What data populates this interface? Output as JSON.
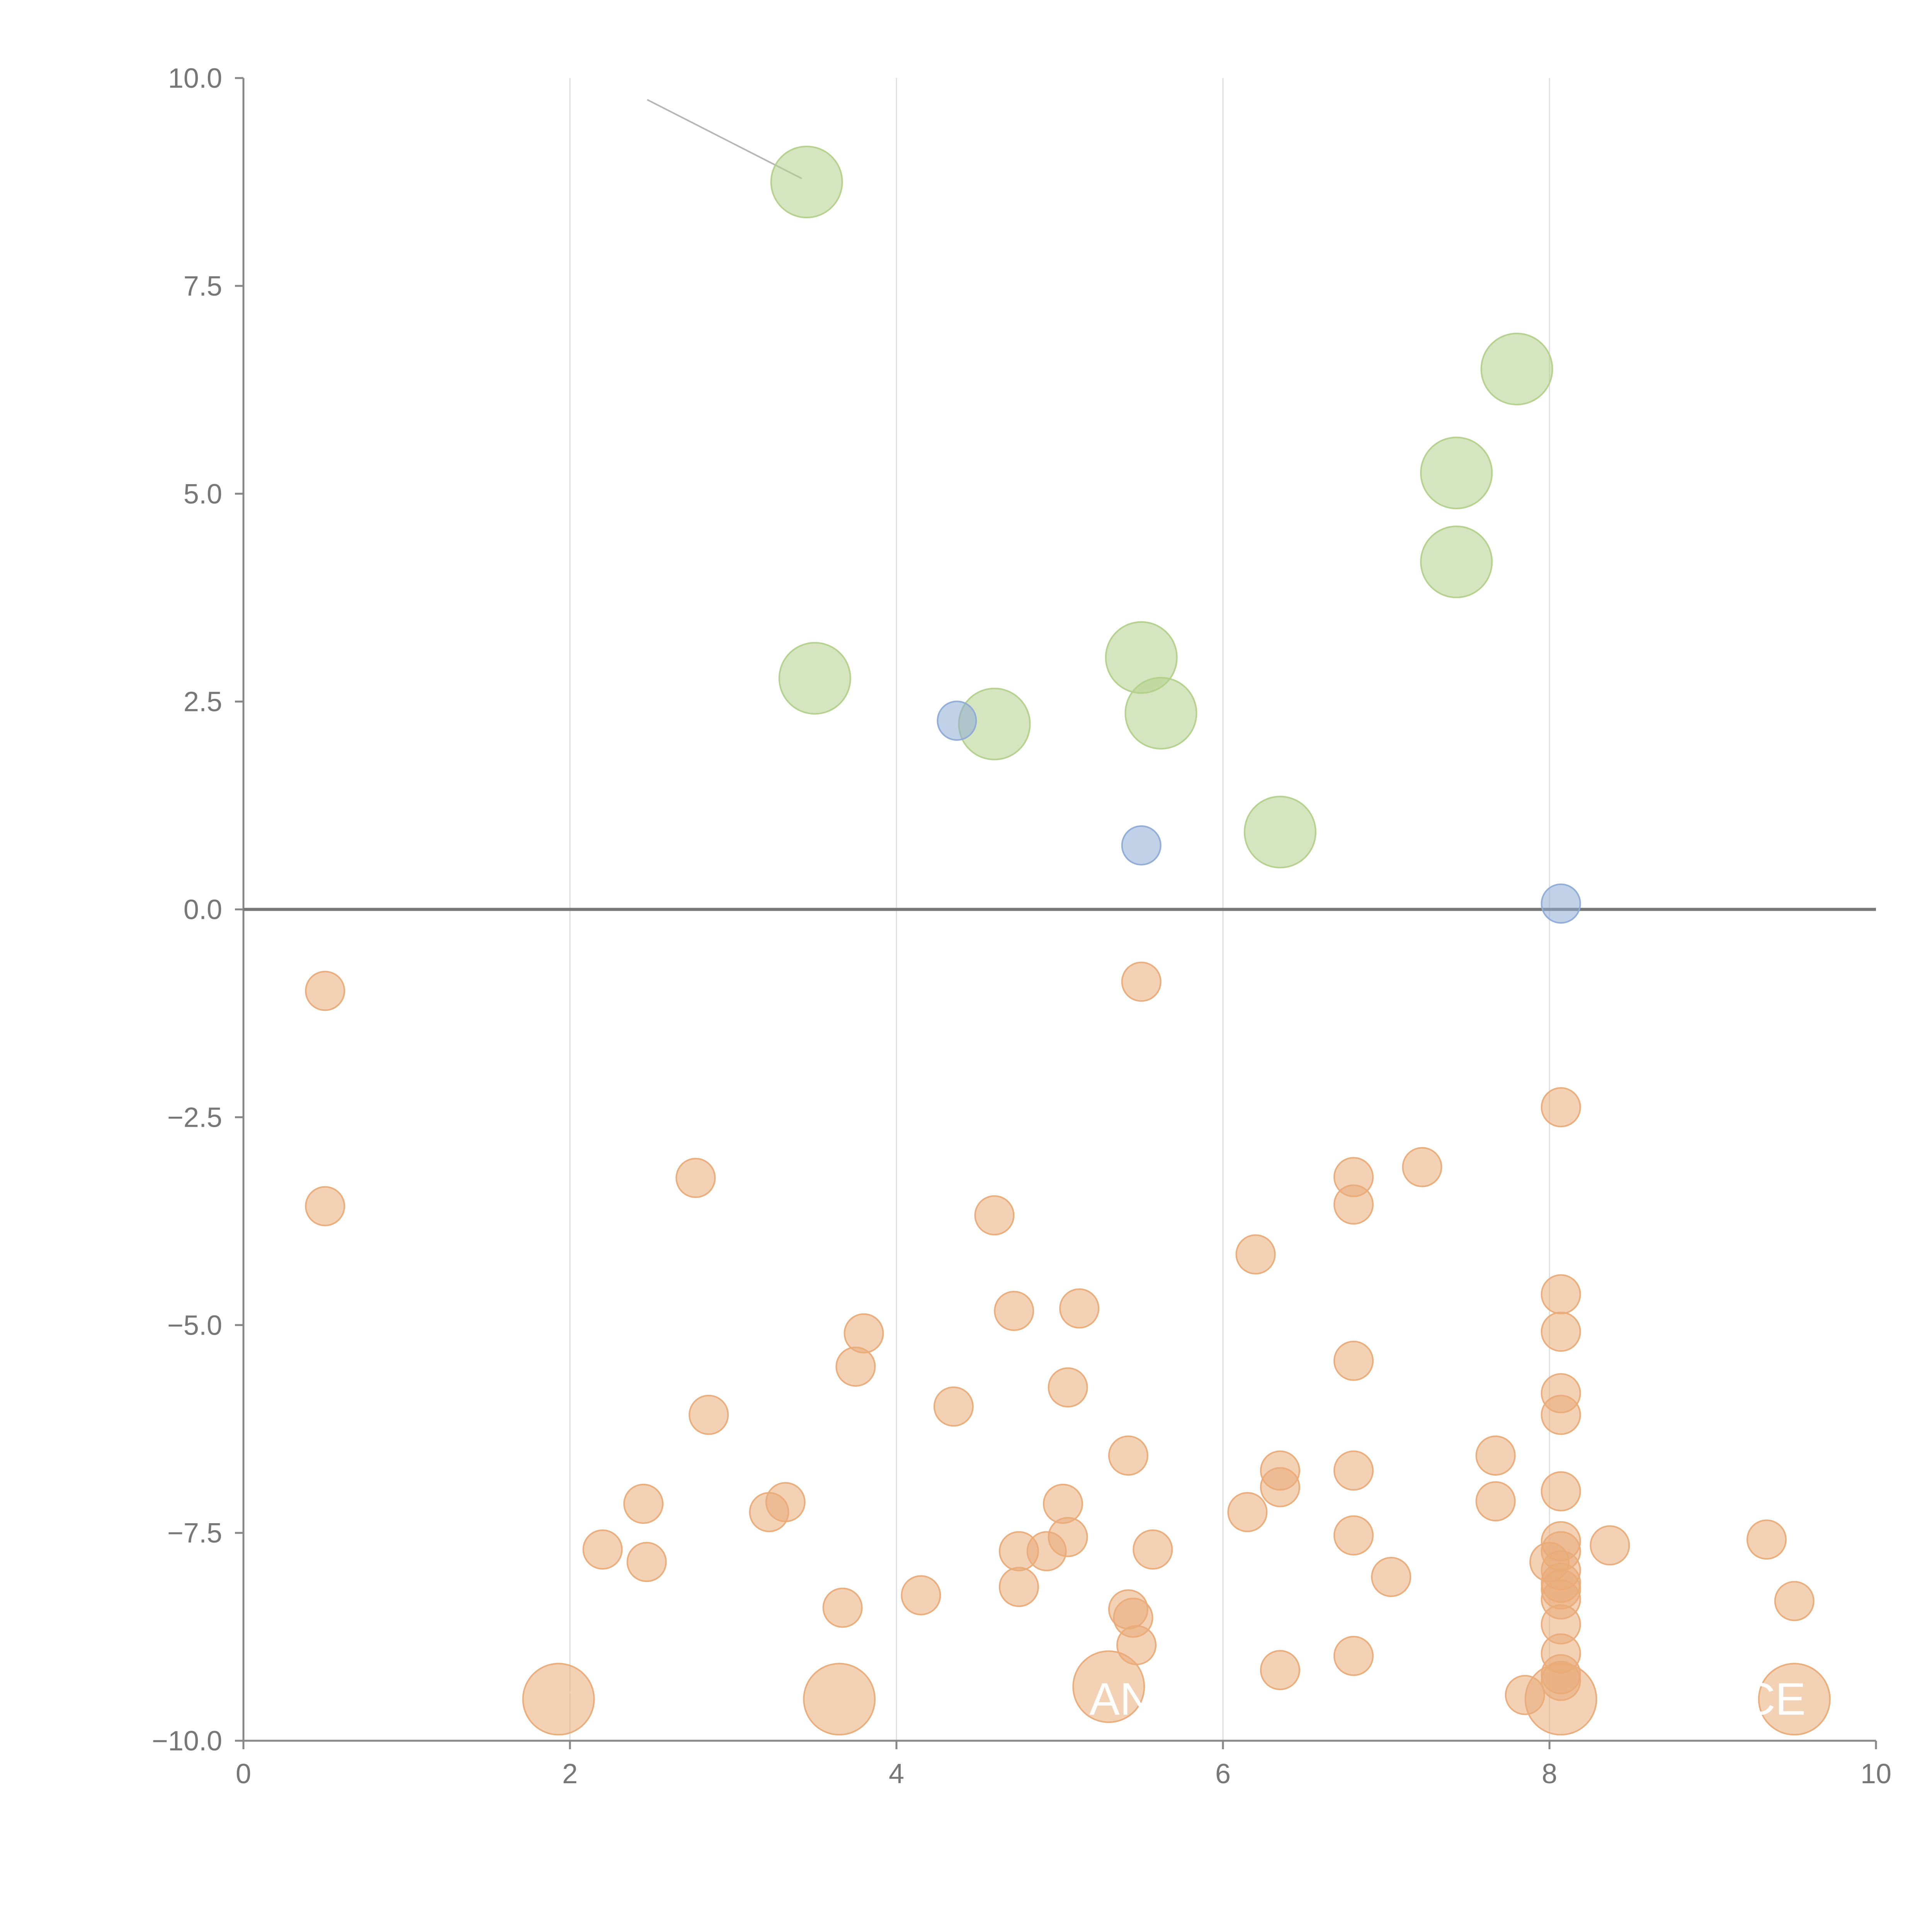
{
  "chart_data": {
    "type": "scatter",
    "title": "",
    "xlabel": "",
    "ylabel": "",
    "xlim": [
      0,
      10
    ],
    "ylim": [
      -10,
      10
    ],
    "grid": "vertical",
    "x_ticks": [
      "0",
      "2",
      "4",
      "6",
      "8",
      "10"
    ],
    "y_ticks": [
      "10.0",
      "7.5",
      "5.0",
      "2.5",
      "0.0",
      "−2.5",
      "−5.0",
      "−7.5",
      "−10.0"
    ],
    "zero_line": true,
    "colors": {
      "green": "#b2d08a",
      "blue": "#8eabd6",
      "orange": "#e9ab78",
      "grid": "#dddddd",
      "axis": "#888888",
      "text": "#777777"
    },
    "series": [
      {
        "name": "green",
        "color": "#b2d08a",
        "size": "large",
        "points": [
          {
            "x": 3.45,
            "y": 8.75
          },
          {
            "x": 7.8,
            "y": 6.5
          },
          {
            "x": 7.43,
            "y": 5.25
          },
          {
            "x": 7.43,
            "y": 4.18
          },
          {
            "x": 5.5,
            "y": 3.03
          },
          {
            "x": 3.5,
            "y": 2.78
          },
          {
            "x": 4.6,
            "y": 2.23
          },
          {
            "x": 5.62,
            "y": 2.36
          },
          {
            "x": 6.35,
            "y": 0.93
          }
        ]
      },
      {
        "name": "blue",
        "color": "#8eabd6",
        "size": "small",
        "points": [
          {
            "x": 4.37,
            "y": 2.27
          },
          {
            "x": 5.5,
            "y": 0.77
          },
          {
            "x": 8.07,
            "y": 0.07
          }
        ]
      },
      {
        "name": "orange",
        "color": "#e9ab78",
        "size": "small",
        "points": [
          {
            "x": 0.5,
            "y": -0.98
          },
          {
            "x": 0.5,
            "y": -3.57
          },
          {
            "x": 5.5,
            "y": -0.87
          },
          {
            "x": 8.07,
            "y": -2.38
          },
          {
            "x": 2.77,
            "y": -3.23
          },
          {
            "x": 4.6,
            "y": -3.68
          },
          {
            "x": 6.8,
            "y": -3.22
          },
          {
            "x": 6.8,
            "y": -3.55
          },
          {
            "x": 7.22,
            "y": -3.1
          },
          {
            "x": 6.2,
            "y": -4.15
          },
          {
            "x": 8.07,
            "y": -4.63
          },
          {
            "x": 4.72,
            "y": -4.83
          },
          {
            "x": 5.12,
            "y": -4.8
          },
          {
            "x": 3.8,
            "y": -5.1
          },
          {
            "x": 8.07,
            "y": -5.08
          },
          {
            "x": 3.75,
            "y": -5.5
          },
          {
            "x": 6.8,
            "y": -5.43
          },
          {
            "x": 5.05,
            "y": -5.75
          },
          {
            "x": 8.07,
            "y": -5.82
          },
          {
            "x": 2.85,
            "y": -6.08
          },
          {
            "x": 4.35,
            "y": -5.98
          },
          {
            "x": 8.07,
            "y": -6.08
          },
          {
            "x": 5.42,
            "y": -6.57
          },
          {
            "x": 7.67,
            "y": -6.57
          },
          {
            "x": 6.35,
            "y": -6.75
          },
          {
            "x": 6.8,
            "y": -6.75
          },
          {
            "x": 6.35,
            "y": -6.95
          },
          {
            "x": 8.07,
            "y": -7.0
          },
          {
            "x": 2.45,
            "y": -7.15
          },
          {
            "x": 3.32,
            "y": -7.13
          },
          {
            "x": 5.02,
            "y": -7.15
          },
          {
            "x": 7.67,
            "y": -7.12
          },
          {
            "x": 3.22,
            "y": -7.25
          },
          {
            "x": 6.15,
            "y": -7.25
          },
          {
            "x": 6.8,
            "y": -7.53
          },
          {
            "x": 5.05,
            "y": -7.55
          },
          {
            "x": 8.07,
            "y": -7.6
          },
          {
            "x": 9.33,
            "y": -7.58
          },
          {
            "x": 8.37,
            "y": -7.65
          },
          {
            "x": 2.2,
            "y": -7.7
          },
          {
            "x": 4.75,
            "y": -7.72
          },
          {
            "x": 4.92,
            "y": -7.72
          },
          {
            "x": 5.57,
            "y": -7.7
          },
          {
            "x": 8.07,
            "y": -7.72
          },
          {
            "x": 2.47,
            "y": -7.85
          },
          {
            "x": 8.0,
            "y": -7.85
          },
          {
            "x": 8.07,
            "y": -7.95
          },
          {
            "x": 7.03,
            "y": -8.03
          },
          {
            "x": 8.07,
            "y": -8.1
          },
          {
            "x": 8.07,
            "y": -8.18
          },
          {
            "x": 4.75,
            "y": -8.15
          },
          {
            "x": 4.15,
            "y": -8.25
          },
          {
            "x": 8.07,
            "y": -8.3
          },
          {
            "x": 9.5,
            "y": -8.32
          },
          {
            "x": 3.67,
            "y": -8.4
          },
          {
            "x": 5.42,
            "y": -8.42
          },
          {
            "x": 5.45,
            "y": -8.52
          },
          {
            "x": 8.07,
            "y": -8.6
          },
          {
            "x": 5.47,
            "y": -8.85
          },
          {
            "x": 8.07,
            "y": -8.95
          },
          {
            "x": 6.8,
            "y": -8.98
          },
          {
            "x": 6.35,
            "y": -9.15
          },
          {
            "x": 8.07,
            "y": -9.2
          },
          {
            "x": 8.07,
            "y": -9.28
          },
          {
            "x": 7.85,
            "y": -9.45
          }
        ]
      },
      {
        "name": "orange-large",
        "color": "#e9ab78",
        "size": "large",
        "points": [
          {
            "x": 1.93,
            "y": -9.5
          },
          {
            "x": 3.65,
            "y": -9.5
          },
          {
            "x": 5.3,
            "y": -9.35
          },
          {
            "x": 8.07,
            "y": -9.5
          },
          {
            "x": 9.5,
            "y": -9.5
          }
        ]
      }
    ],
    "annotations": [
      {
        "text": "AN",
        "x": 5.3,
        "y": -9.5
      },
      {
        "text": "CE",
        "x": 9.3,
        "y": -9.5
      }
    ]
  }
}
